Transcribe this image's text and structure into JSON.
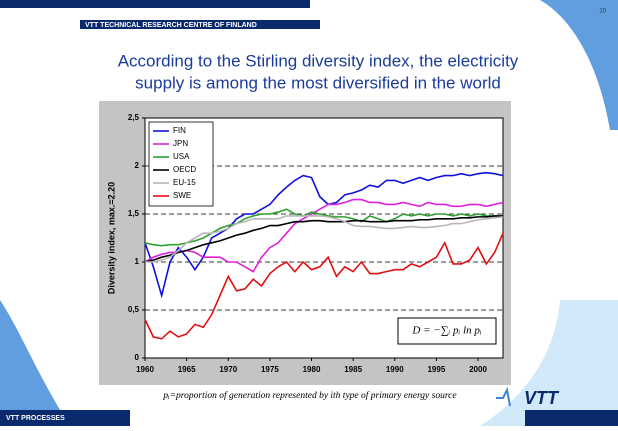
{
  "header": "VTT TECHNICAL RESEARCH CENTRE OF FINLAND",
  "slide_number": "10",
  "title_lines": [
    "According to the Stirling diversity index, the electricity",
    "supply is among the most diversified in the world"
  ],
  "footnote": "pᵢ=proportion of generation represented by ith type of primary energy source",
  "footer": "VTT PROCESSES",
  "logo": "VTT",
  "chart_data": {
    "type": "line",
    "y_label": "Diversity index, max.=2.20",
    "formula": "D = −∑ᵢ pᵢ ln pᵢ",
    "x": [
      1960,
      1961,
      1962,
      1963,
      1964,
      1965,
      1966,
      1967,
      1968,
      1969,
      1970,
      1971,
      1972,
      1973,
      1974,
      1975,
      1976,
      1977,
      1978,
      1979,
      1980,
      1981,
      1982,
      1983,
      1984,
      1985,
      1986,
      1987,
      1988,
      1989,
      1990,
      1991,
      1992,
      1993,
      1994,
      1995,
      1996,
      1997,
      1998,
      1999,
      2000,
      2001,
      2002,
      2003
    ],
    "xlim": [
      1960,
      2003
    ],
    "xticks": [
      1960,
      1965,
      1970,
      1975,
      1980,
      1985,
      1990,
      1995,
      2000
    ],
    "ylim": [
      0,
      2.5
    ],
    "yticks": [
      0,
      {
        "value": 0.5,
        "label": "0,5"
      },
      1,
      {
        "value": 1.5,
        "label": "1,5"
      },
      2,
      {
        "value": 2.5,
        "label": "2,5"
      }
    ],
    "grid": true,
    "legend": "upper left",
    "series": [
      {
        "name": "FIN",
        "color": "#1010e0",
        "values": [
          1.2,
          0.95,
          0.65,
          1.0,
          1.15,
          1.05,
          0.92,
          1.05,
          1.25,
          1.3,
          1.35,
          1.45,
          1.5,
          1.5,
          1.55,
          1.6,
          1.7,
          1.78,
          1.85,
          1.9,
          1.88,
          1.68,
          1.6,
          1.62,
          1.7,
          1.72,
          1.75,
          1.8,
          1.78,
          1.85,
          1.85,
          1.82,
          1.85,
          1.88,
          1.85,
          1.88,
          1.9,
          1.9,
          1.92,
          1.9,
          1.92,
          1.93,
          1.92,
          1.9
        ]
      },
      {
        "name": "JPN",
        "color": "#e020e0",
        "values": [
          1.0,
          1.05,
          1.08,
          1.1,
          1.1,
          1.12,
          1.1,
          1.05,
          1.05,
          1.05,
          1.0,
          1.0,
          0.95,
          0.9,
          1.05,
          1.15,
          1.2,
          1.3,
          1.4,
          1.45,
          1.5,
          1.55,
          1.6,
          1.6,
          1.62,
          1.65,
          1.65,
          1.62,
          1.62,
          1.6,
          1.6,
          1.62,
          1.6,
          1.58,
          1.62,
          1.6,
          1.6,
          1.58,
          1.58,
          1.6,
          1.6,
          1.58,
          1.6,
          1.62
        ]
      },
      {
        "name": "USA",
        "color": "#30a030",
        "values": [
          1.2,
          1.18,
          1.17,
          1.18,
          1.18,
          1.2,
          1.22,
          1.25,
          1.3,
          1.35,
          1.38,
          1.4,
          1.45,
          1.48,
          1.5,
          1.5,
          1.52,
          1.55,
          1.5,
          1.48,
          1.52,
          1.5,
          1.48,
          1.47,
          1.47,
          1.45,
          1.42,
          1.48,
          1.45,
          1.42,
          1.45,
          1.5,
          1.48,
          1.5,
          1.48,
          1.5,
          1.5,
          1.48,
          1.5,
          1.48,
          1.5,
          1.48,
          1.48,
          1.47
        ]
      },
      {
        "name": "OECD",
        "color": "#000000",
        "values": [
          1.0,
          1.02,
          1.05,
          1.07,
          1.1,
          1.12,
          1.15,
          1.18,
          1.2,
          1.22,
          1.25,
          1.28,
          1.3,
          1.33,
          1.35,
          1.38,
          1.38,
          1.4,
          1.42,
          1.42,
          1.43,
          1.43,
          1.42,
          1.42,
          1.42,
          1.43,
          1.43,
          1.42,
          1.42,
          1.42,
          1.43,
          1.43,
          1.43,
          1.44,
          1.44,
          1.45,
          1.45,
          1.45,
          1.46,
          1.46,
          1.47,
          1.47,
          1.48,
          1.48
        ]
      },
      {
        "name": "EU-15",
        "color": "#b8b8b8",
        "values": [
          1.0,
          1.0,
          1.02,
          1.05,
          1.12,
          1.2,
          1.25,
          1.3,
          1.3,
          1.32,
          1.35,
          1.4,
          1.42,
          1.45,
          1.45,
          1.45,
          1.45,
          1.48,
          1.48,
          1.48,
          1.48,
          1.48,
          1.47,
          1.45,
          1.42,
          1.38,
          1.37,
          1.37,
          1.36,
          1.35,
          1.35,
          1.36,
          1.37,
          1.36,
          1.36,
          1.37,
          1.38,
          1.4,
          1.4,
          1.42,
          1.44,
          1.45,
          1.46,
          1.47
        ]
      },
      {
        "name": "SWE",
        "color": "#e01010",
        "values": [
          0.4,
          0.22,
          0.2,
          0.28,
          0.22,
          0.25,
          0.35,
          0.32,
          0.45,
          0.65,
          0.85,
          0.7,
          0.72,
          0.82,
          0.75,
          0.88,
          0.95,
          1.0,
          0.9,
          1.0,
          0.92,
          0.95,
          1.05,
          0.85,
          0.95,
          0.9,
          1.0,
          0.88,
          0.88,
          0.9,
          0.92,
          0.92,
          0.98,
          0.95,
          1.0,
          1.05,
          1.2,
          0.98,
          0.98,
          1.02,
          1.15,
          0.98,
          1.1,
          1.3
        ]
      }
    ]
  }
}
